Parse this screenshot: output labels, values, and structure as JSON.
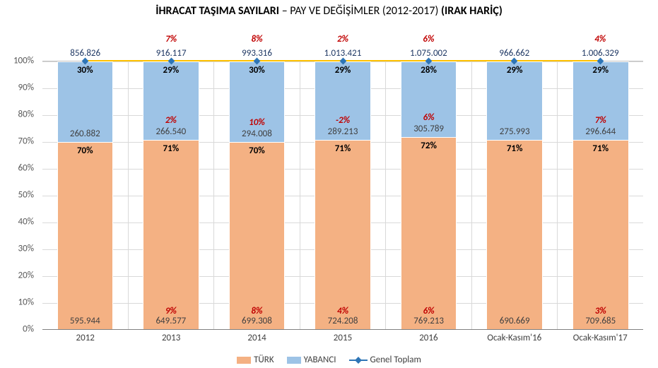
{
  "title": {
    "part1": "İHRACAT TAŞIMA SAYILARI",
    "dash": " – ",
    "part2": "PAY VE DEĞİŞİMLER (2012-2017)",
    "part3": " (IRAK HARİÇ)",
    "fontsize": 16
  },
  "chart": {
    "type": "stacked-bar-100pct",
    "background_color": "#ffffff",
    "grid_color": "#d9d9d9",
    "axis_color": "#808080",
    "text_color": "#404040",
    "label_fontsize": 13,
    "ylim": [
      0,
      100
    ],
    "ytick_step": 10,
    "y_ticks": [
      "0%",
      "10%",
      "20%",
      "30%",
      "40%",
      "50%",
      "60%",
      "70%",
      "80%",
      "90%",
      "100%"
    ],
    "categories": [
      "2012",
      "2013",
      "2014",
      "2015",
      "2016",
      "Ocak-Kasım'16",
      "Ocak-Kasım'17"
    ],
    "series": {
      "turk": {
        "label": "TÜRK",
        "color": "#f4b183",
        "pct": [
          70,
          71,
          70,
          71,
          72,
          71,
          71
        ],
        "value": [
          "595.944",
          "649.577",
          "699.308",
          "724.208",
          "769.213",
          "690.669",
          "709.685"
        ],
        "change": [
          null,
          "9%",
          "8%",
          "4%",
          "6%",
          null,
          "3%"
        ]
      },
      "yabanci": {
        "label": "YABANCI",
        "color": "#9dc3e6",
        "pct": [
          30,
          29,
          30,
          29,
          28,
          29,
          29
        ],
        "value": [
          "260.882",
          "266.540",
          "294.008",
          "289.213",
          "305.789",
          "275.993",
          "296.644"
        ],
        "change": [
          null,
          "2%",
          "10%",
          "-2%",
          "6%",
          null,
          "7%"
        ]
      },
      "total": {
        "label": "Genel Toplam",
        "line_color": "#ffc000",
        "marker_color": "#2e75b6",
        "value": [
          "856.826",
          "916.117",
          "993.316",
          "1.013.421",
          "1.075.002",
          "966.662",
          "1.006.329"
        ],
        "change": [
          null,
          "7%",
          "8%",
          "2%",
          "6%",
          null,
          "4%"
        ],
        "value_text_color": "#1f3864"
      }
    },
    "change_text_color": "#c00000",
    "bar_width": 0.66
  },
  "legend": {
    "items": [
      {
        "type": "swatch",
        "color": "#f4b183",
        "label": "TÜRK"
      },
      {
        "type": "swatch",
        "color": "#9dc3e6",
        "label": "YABANCI"
      },
      {
        "type": "line-marker",
        "line_color": "#ffc000",
        "marker_color": "#2e75b6",
        "label": "Genel Toplam"
      }
    ]
  }
}
